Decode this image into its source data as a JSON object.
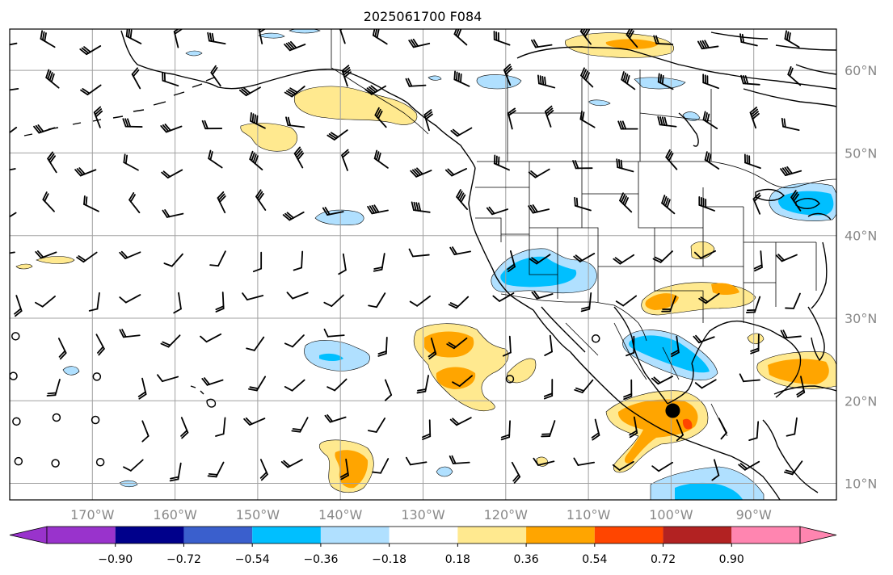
{
  "title": "2025061700 F084",
  "colors": {
    "neg_090": "#9933cc",
    "neg_072": "#00008b",
    "neg_054": "#3a5fcd",
    "neg_036": "#00bfff",
    "neg_018": "#b0e0ff",
    "neutral": "#ffffff",
    "pos_018": "#ffe98f",
    "pos_036": "#ffa500",
    "pos_054": "#ff4500",
    "pos_072": "#b22222",
    "pos_090": "#ff85b0",
    "marker": "#000000"
  },
  "map": {
    "lon_range": [
      -180,
      -80
    ],
    "lat_range": [
      8,
      65
    ],
    "lon_labels": [
      "170°W",
      "160°W",
      "150°W",
      "140°W",
      "130°W",
      "120°W",
      "110°W",
      "100°W",
      "90°W"
    ],
    "lat_labels": [
      "60°N",
      "50°N",
      "40°N",
      "30°N",
      "20°N",
      "10°N"
    ],
    "marker": {
      "lon": -99.8,
      "lat": 18.8
    }
  },
  "colorbar": {
    "tick_labels": [
      "−0.90",
      "−0.72",
      "−0.54",
      "−0.36",
      "−0.18",
      "0.18",
      "0.36",
      "0.54",
      "0.72",
      "0.90"
    ]
  }
}
